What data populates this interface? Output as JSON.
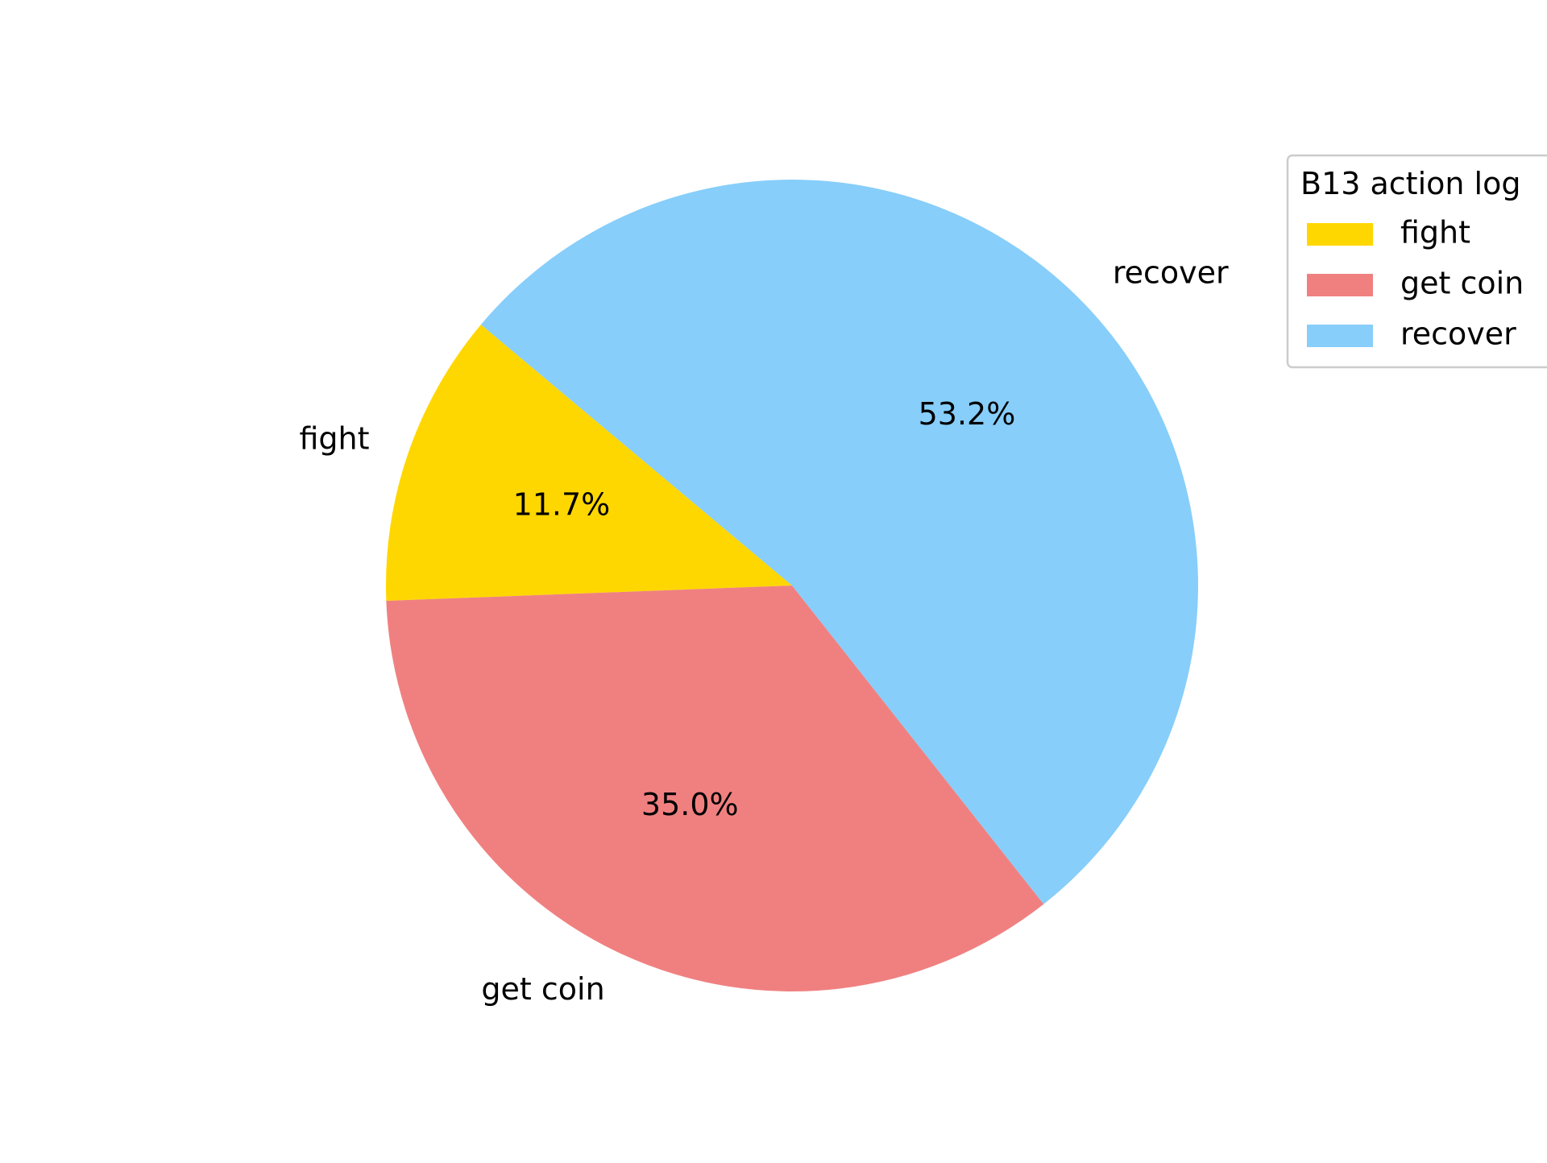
{
  "chart_data": {
    "type": "pie",
    "title": "",
    "categories": [
      "fight",
      "get coin",
      "recover"
    ],
    "values": [
      11.7,
      35.0,
      53.2
    ],
    "value_labels": [
      "11.7%",
      "35.0%",
      "53.2%"
    ],
    "colors": [
      "#FFD700",
      "#F08080",
      "#87CEFA"
    ],
    "start_angle_deg": 140,
    "direction": "counterclockwise",
    "legend": {
      "title": "B13 action log",
      "placement": "top-right",
      "entries": [
        "fight",
        "get coin",
        "recover"
      ]
    }
  }
}
